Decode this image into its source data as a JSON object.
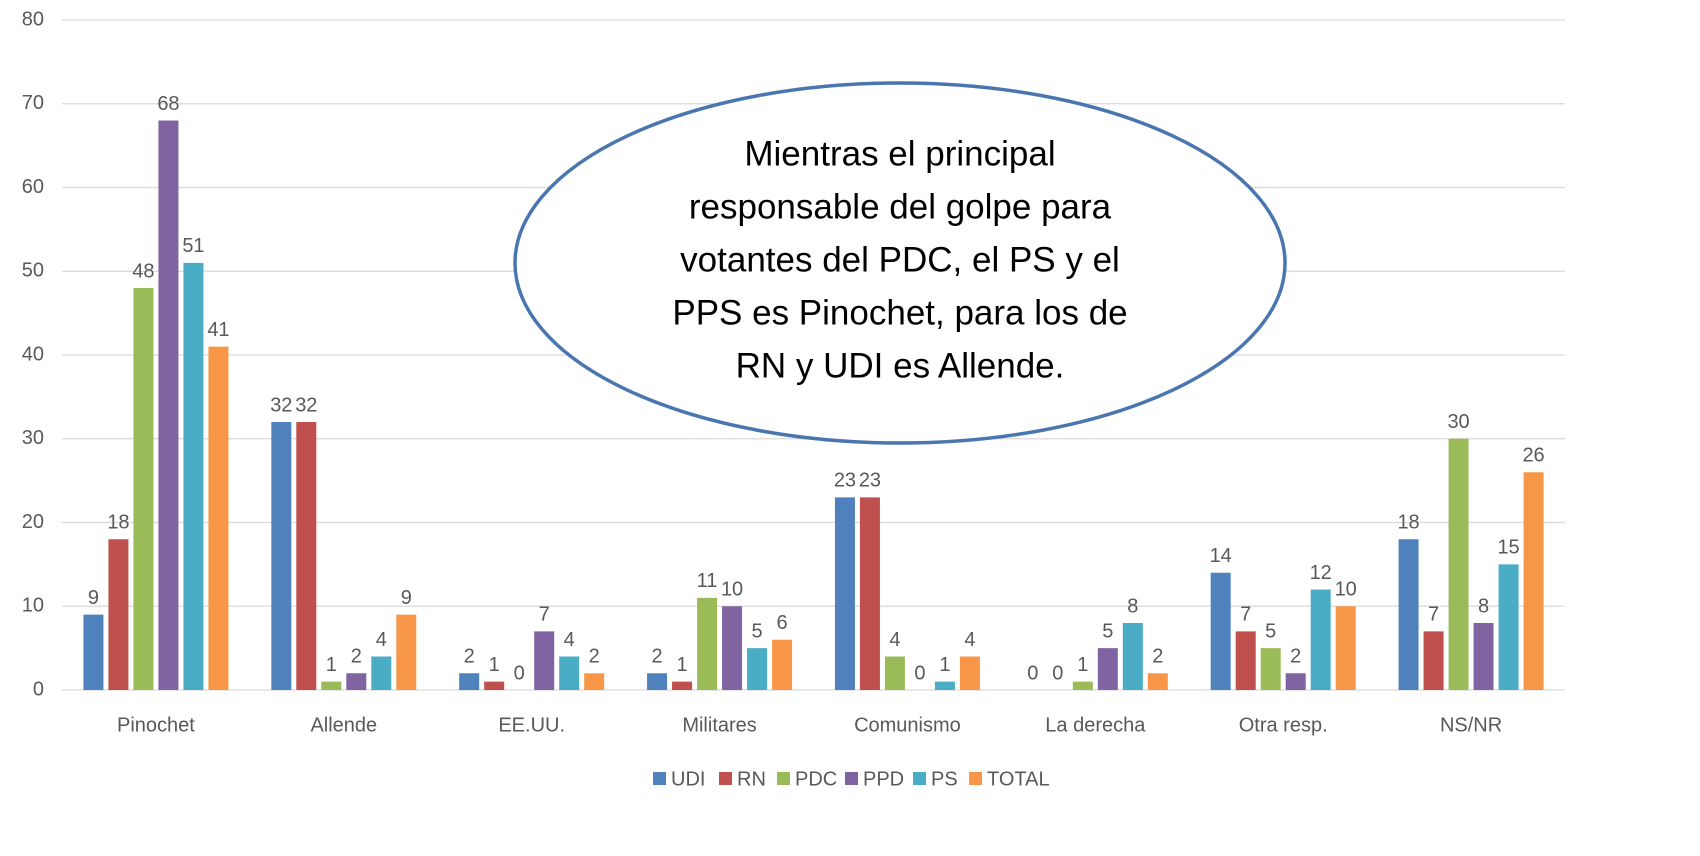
{
  "chart_data": {
    "type": "bar",
    "categories": [
      "Pinochet",
      "Allende",
      "EE.UU.",
      "Militares",
      "Comunismo",
      "La derecha",
      "Otra resp.",
      "NS/NR"
    ],
    "series": [
      {
        "name": "UDI",
        "color": "#4f81bd",
        "values": [
          9,
          32,
          2,
          2,
          23,
          0,
          14,
          18
        ]
      },
      {
        "name": "RN",
        "color": "#c0504d",
        "values": [
          18,
          32,
          1,
          1,
          23,
          0,
          7,
          7
        ]
      },
      {
        "name": "PDC",
        "color": "#9bbb59",
        "values": [
          48,
          1,
          0,
          11,
          4,
          1,
          5,
          30
        ]
      },
      {
        "name": "PPD",
        "color": "#8064a2",
        "values": [
          68,
          2,
          7,
          10,
          0,
          5,
          2,
          8
        ]
      },
      {
        "name": "PS",
        "color": "#4bacc6",
        "values": [
          51,
          4,
          4,
          5,
          1,
          8,
          12,
          15
        ]
      },
      {
        "name": "TOTAL",
        "color": "#f79646",
        "values": [
          41,
          9,
          2,
          6,
          4,
          2,
          10,
          26
        ]
      }
    ],
    "ylim": [
      0,
      80
    ],
    "yticks": [
      0,
      10,
      20,
      30,
      40,
      50,
      60,
      70,
      80
    ],
    "grid": true,
    "legend": "bottom",
    "annotation": [
      "Mientras el principal",
      "responsable del golpe para",
      "votantes del PDC, el PS y el",
      "PPS es Pinochet, para los de",
      "RN y UDI es Allende."
    ]
  }
}
